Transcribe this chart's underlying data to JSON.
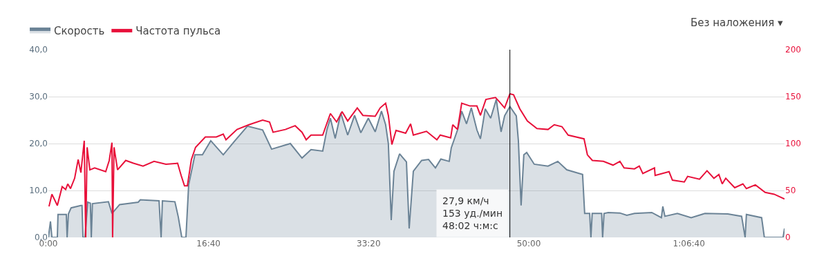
{
  "chart_data": {
    "type": "line",
    "xlim": [
      0,
      4597
    ],
    "xticks": [
      {
        "value": 0,
        "label": "0:00"
      },
      {
        "value": 1000,
        "label": "16:40"
      },
      {
        "value": 2000,
        "label": "33:20"
      },
      {
        "value": 3000,
        "label": "50:00"
      },
      {
        "value": 4000,
        "label": "1:06:40"
      }
    ],
    "ylim": [
      0,
      40
    ],
    "yticks": [
      {
        "value": 0,
        "label": "0,0"
      },
      {
        "value": 10,
        "label": "10,0"
      },
      {
        "value": 20,
        "label": "20,0"
      },
      {
        "value": 30,
        "label": "30,0"
      },
      {
        "value": 40,
        "label": "40,0"
      }
    ],
    "y2lim": [
      0,
      200
    ],
    "y2ticks": [
      0,
      50,
      100,
      150,
      200
    ],
    "grid": "y",
    "legend": "top",
    "marker": "none",
    "line_style": "solid",
    "series": [
      {
        "name": "Скорость",
        "type": "area",
        "color": "#6b8396",
        "x": [
          0,
          13,
          22,
          56,
          60,
          112,
          117,
          125,
          142,
          203,
          210,
          216,
          228,
          246,
          262,
          268,
          275,
          375,
          397,
          445,
          561,
          574,
          691,
          704,
          712,
          790,
          811,
          833,
          859,
          876,
          915,
          962,
          1014,
          1092,
          1165,
          1243,
          1338,
          1394,
          1511,
          1584,
          1640,
          1713,
          1739,
          1761,
          1791,
          1826,
          1869,
          1912,
          1951,
          1998,
          2041,
          2080,
          2106,
          2123,
          2141,
          2158,
          2193,
          2236,
          2253,
          2279,
          2331,
          2374,
          2417,
          2451,
          2503,
          2516,
          2555,
          2581,
          2611,
          2641,
          2676,
          2698,
          2728,
          2762,
          2797,
          2827,
          2849,
          2882,
          2922,
          2935,
          2952,
          2969,
          2987,
          3034,
          3120,
          3181,
          3237,
          3336,
          3349,
          3380,
          3388,
          3396,
          3455,
          3461,
          3470,
          3496,
          3569,
          3612,
          3660,
          3768,
          3828,
          3837,
          3850,
          3928,
          4014,
          4100,
          4243,
          4329,
          4351,
          4359,
          4454,
          4471,
          4588,
          4597
        ],
        "values": [
          0,
          3.4,
          0,
          0,
          4.9,
          4.9,
          0,
          5.0,
          6.3,
          6.8,
          6.8,
          0,
          0,
          7.5,
          7.3,
          0,
          7.2,
          7.6,
          5.1,
          7.0,
          7.5,
          8.0,
          7.8,
          0,
          7.8,
          7.6,
          4.4,
          0,
          0,
          11.2,
          17.6,
          17.6,
          20.6,
          17.6,
          20.6,
          23.7,
          22.9,
          18.8,
          20.0,
          16.9,
          18.7,
          18.4,
          22.9,
          25.4,
          21.1,
          26.5,
          21.8,
          26.0,
          22.3,
          25.4,
          22.5,
          26.9,
          24.0,
          20.0,
          3.7,
          14.1,
          17.8,
          16.1,
          1.9,
          14.1,
          16.4,
          16.6,
          14.8,
          16.7,
          16.2,
          19.1,
          22.9,
          26.9,
          24.2,
          27.6,
          22.9,
          21.0,
          27.4,
          25.4,
          29.4,
          22.5,
          25.9,
          27.9,
          25.9,
          20.6,
          6.8,
          17.6,
          18.1,
          15.6,
          15.2,
          16.2,
          14.4,
          13.4,
          5.1,
          5.1,
          0,
          5.1,
          5.1,
          0,
          5.1,
          5.3,
          5.2,
          4.7,
          5.1,
          5.3,
          4.2,
          6.6,
          4.5,
          5.1,
          4.2,
          5.1,
          5.0,
          4.5,
          0,
          4.9,
          4.2,
          0,
          0,
          1.9
        ]
      },
      {
        "name": "Частота пульса",
        "axis": "y2",
        "color": "#e8103a",
        "x": [
          4,
          22,
          56,
          86,
          108,
          121,
          138,
          164,
          186,
          203,
          224,
          233,
          242,
          259,
          289,
          358,
          380,
          397,
          401,
          410,
          432,
          483,
          531,
          591,
          660,
          734,
          807,
          829,
          850,
          868,
          893,
          919,
          980,
          1049,
          1092,
          1109,
          1178,
          1252,
          1338,
          1381,
          1403,
          1480,
          1541,
          1584,
          1610,
          1640,
          1713,
          1761,
          1800,
          1834,
          1869,
          1929,
          1964,
          2041,
          2072,
          2106,
          2123,
          2145,
          2171,
          2231,
          2262,
          2279,
          2361,
          2426,
          2447,
          2512,
          2525,
          2555,
          2581,
          2633,
          2676,
          2698,
          2732,
          2792,
          2814,
          2849,
          2882,
          2905,
          2944,
          2991,
          3051,
          3120,
          3159,
          3207,
          3246,
          3345,
          3366,
          3397,
          3466,
          3526,
          3569,
          3595,
          3660,
          3690,
          3712,
          3785,
          3789,
          3876,
          3897,
          3971,
          3992,
          4066,
          4113,
          4156,
          4187,
          4208,
          4230,
          4286,
          4337,
          4359,
          4415,
          4476,
          4532,
          4597
        ],
        "values": [
          33,
          46,
          34,
          54,
          51,
          57,
          52,
          63,
          83,
          69,
          103,
          0,
          96,
          72,
          74,
          70,
          82,
          101,
          0,
          96,
          72,
          82,
          79,
          76,
          81,
          78,
          79,
          66,
          55,
          55,
          83,
          96,
          107,
          107,
          110,
          104,
          115,
          120,
          125,
          123,
          112,
          115,
          119,
          112,
          104,
          109,
          109,
          132,
          123,
          134,
          124,
          138,
          130,
          129,
          138,
          143,
          130,
          99,
          114,
          111,
          121,
          109,
          113,
          104,
          109,
          106,
          120,
          115,
          143,
          140,
          140,
          130,
          147,
          149,
          145,
          138,
          153,
          152,
          137,
          124,
          116,
          115,
          120,
          118,
          109,
          105,
          88,
          82,
          81,
          77,
          81,
          74,
          73,
          76,
          68,
          74,
          66,
          70,
          61,
          59,
          65,
          62,
          71,
          63,
          67,
          57,
          63,
          53,
          57,
          52,
          56,
          48,
          46,
          41
        ]
      }
    ],
    "ref_lines": [
      {
        "axis": "x",
        "value": 2882,
        "color": "#000000"
      }
    ],
    "annotations": [
      "27,9 км/ч\n153 уд./мин\n48:02 ч:м:с",
      "Без наложения ▾"
    ]
  }
}
